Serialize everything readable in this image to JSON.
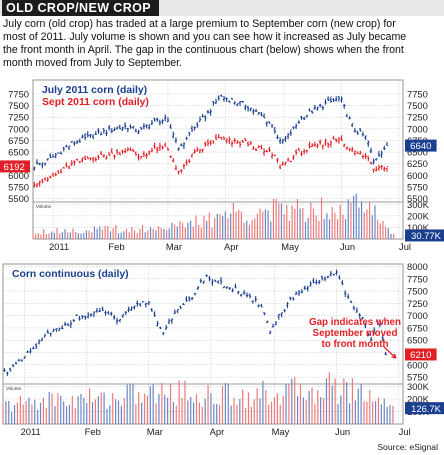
{
  "header": {
    "title": "OLD CROP/NEW CROP",
    "intro_lines": [
      "July corn (old crop) has traded at a large premium to September corn (new crop) for",
      "most of 2011. July volume is shown and you can see how it increased as July became",
      "the front month in April. The gap in the continuous chart (below) shows when the front",
      "month moved from July to September."
    ]
  },
  "source": "Source: eSignal",
  "colors": {
    "blue": "#1a3f8f",
    "red": "#e21f26",
    "volume_blue": "#6a86c4",
    "volume_red": "#ec7a7a",
    "grid": "#bfbfbf"
  },
  "chart_data": [
    {
      "type": "bar",
      "chart": "ohlc",
      "legend": [
        "July 2011 corn (daily)",
        "Sept 2011 corn (daily)"
      ],
      "legend_placement": "top-left",
      "x_tick_labels": [
        "2011",
        "Feb",
        "Mar",
        "Apr",
        "May",
        "Jun",
        "Jul"
      ],
      "x_ticks_at_week": [
        0,
        4.3,
        8.6,
        12.9,
        17.3,
        21.6,
        25.9
      ],
      "x_range_weeks": [
        -1.5,
        26.2
      ],
      "y_tick_labels": [
        "7750",
        "7500",
        "7250",
        "7000",
        "6750",
        "6500",
        "6250",
        "6000",
        "5750",
        "5500"
      ],
      "ylim": [
        5470,
        8050
      ],
      "grid": true,
      "price_labels": [
        {
          "text": "6192",
          "value": 6192,
          "color": "#e21f26",
          "side": "left"
        },
        {
          "text": "6640",
          "value": 6640,
          "color": "#1a3f8f",
          "side": "right"
        }
      ],
      "series": [
        {
          "name": "July 2011 corn (daily)",
          "x_week": [
            -1.4,
            -0.5,
            0.5,
            1.5,
            2.5,
            3.5,
            4.5,
            5.5,
            6.5,
            7.5,
            8.5,
            9.0,
            9.5,
            10.0,
            10.5,
            11.5,
            12.5,
            13.5,
            14.5,
            15.5,
            16.5,
            17.0,
            17.5,
            18.5,
            19.5,
            20.5,
            21.5,
            22.5,
            23.5,
            24.0,
            24.5,
            25.0
          ],
          "close": [
            6200,
            6300,
            6500,
            6700,
            6800,
            6900,
            7000,
            7050,
            6950,
            7150,
            7200,
            6900,
            6550,
            6800,
            7000,
            7300,
            7700,
            7600,
            7500,
            7300,
            7050,
            6700,
            6800,
            7200,
            7400,
            7550,
            7650,
            7000,
            6800,
            6300,
            6500,
            6640
          ]
        },
        {
          "name": "Sept 2011 corn (daily)",
          "x_week": [
            -1.4,
            -0.5,
            0.5,
            1.5,
            2.5,
            3.5,
            4.5,
            5.5,
            6.5,
            7.5,
            8.5,
            9.0,
            9.5,
            10.0,
            10.5,
            11.5,
            12.5,
            13.5,
            14.5,
            15.5,
            16.5,
            17.0,
            17.5,
            18.5,
            19.5,
            20.5,
            21.5,
            22.5,
            23.5,
            24.0,
            24.5,
            25.0
          ],
          "close": [
            5850,
            5900,
            6050,
            6250,
            6350,
            6400,
            6450,
            6550,
            6400,
            6550,
            6600,
            6300,
            6050,
            6250,
            6450,
            6650,
            6800,
            6700,
            6700,
            6550,
            6450,
            6200,
            6300,
            6500,
            6600,
            6700,
            6800,
            6500,
            6400,
            6150,
            6200,
            6192
          ]
        }
      ],
      "volume": {
        "y_tick_labels": [
          "300K",
          "200K",
          "100K"
        ],
        "ylim": [
          0,
          320000
        ],
        "last_label": "30.77K",
        "unit": "K",
        "x_week": [
          -1.5,
          -0.5,
          0.5,
          1.5,
          2.5,
          3.5,
          4.5,
          5.5,
          6.5,
          7.5,
          8.5,
          9.5,
          10.5,
          11.5,
          12.5,
          13.5,
          14.5,
          15.5,
          16.5,
          17.5,
          18.5,
          19.5,
          20.5,
          21.5,
          22.5,
          23.5,
          24.5,
          25.5
        ],
        "values": [
          60,
          70,
          70,
          80,
          70,
          80,
          90,
          80,
          90,
          90,
          120,
          110,
          140,
          150,
          200,
          230,
          220,
          230,
          240,
          250,
          260,
          270,
          280,
          290,
          300,
          250,
          200,
          31
        ]
      }
    },
    {
      "type": "bar",
      "chart": "ohlc",
      "legend": [
        "Corn continuous (daily)"
      ],
      "legend_placement": "top-left",
      "x_tick_labels": [
        "2011",
        "Feb",
        "Mar",
        "Apr",
        "May",
        "Jun",
        "Jul"
      ],
      "x_ticks_at_week": [
        0,
        4.3,
        8.6,
        12.9,
        17.3,
        21.6,
        25.9
      ],
      "x_range_weeks": [
        -1.5,
        26.2
      ],
      "y_tick_labels": [
        "8000",
        "7750",
        "7500",
        "7250",
        "7000",
        "6750",
        "6500",
        "6250",
        "6000",
        "5750"
      ],
      "ylim": [
        5650,
        8050
      ],
      "grid": true,
      "price_labels": [
        {
          "text": "6210",
          "value": 6210,
          "color": "#e21f26",
          "side": "right"
        }
      ],
      "annotation": {
        "lines": [
          "Gap indicates when",
          "September moved",
          "to front month"
        ],
        "color": "#e21f26"
      },
      "series": [
        {
          "name": "Corn continuous (daily)",
          "x_week": [
            -1.4,
            -0.5,
            0.5,
            1.5,
            2.5,
            3.5,
            4.5,
            5.5,
            6.5,
            7.5,
            8.5,
            9.0,
            9.5,
            10.0,
            10.5,
            11.5,
            12.5,
            13.5,
            14.5,
            15.5,
            16.5,
            17.0,
            17.5,
            18.5,
            19.5,
            20.5,
            21.5,
            22.5,
            23.5,
            24.0,
            24.5,
            25.0
          ],
          "close": [
            5850,
            6000,
            6300,
            6600,
            6750,
            6950,
            7000,
            7100,
            6900,
            7150,
            7300,
            7000,
            6650,
            6900,
            7050,
            7350,
            7800,
            7650,
            7550,
            7350,
            7200,
            6650,
            6950,
            7350,
            7550,
            7700,
            7900,
            7300,
            6900,
            6500,
            6950,
            6210
          ]
        }
      ],
      "volume": {
        "y_tick_labels": [
          "300K",
          "200K",
          "100K"
        ],
        "ylim": [
          0,
          320000
        ],
        "last_label": "126.7K",
        "unit": "K",
        "x_week": [
          -1.5,
          -0.5,
          0.5,
          1.5,
          2.5,
          3.5,
          4.5,
          5.5,
          6.5,
          7.5,
          8.5,
          9.5,
          10.5,
          11.5,
          12.5,
          13.5,
          14.5,
          15.5,
          16.5,
          17.5,
          18.5,
          19.5,
          20.5,
          21.5,
          22.5,
          23.5,
          24.5,
          25.5
        ],
        "values": [
          140,
          160,
          180,
          190,
          200,
          190,
          210,
          200,
          220,
          240,
          230,
          250,
          260,
          240,
          220,
          230,
          240,
          230,
          240,
          250,
          260,
          270,
          300,
          290,
          280,
          250,
          220,
          127
        ]
      }
    }
  ]
}
